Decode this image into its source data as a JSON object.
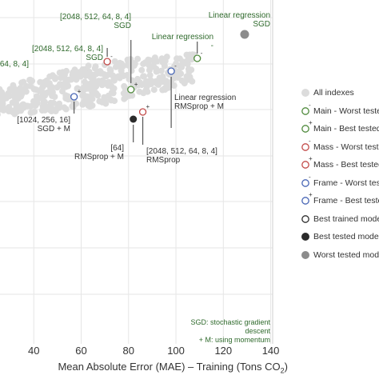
{
  "chart_data": {
    "type": "scatter",
    "xlabel": "Mean Absolute Error (MAE) – Training (Tons CO",
    "xlabel_sub": "2",
    "xlabel_tail": ")",
    "x_ticks": [
      "40",
      "60",
      "80",
      "100",
      "120",
      "140"
    ],
    "xlim": [
      20,
      140
    ],
    "colors": {
      "all": "#dcdcdc",
      "main": "#4f8a3c",
      "mass": "#c24a48",
      "frame": "#4765b5",
      "best_tested": "#2b2b2b",
      "worst_tested": "#8c8c8c",
      "annotation": "#2f6a2c",
      "leader": "#555555"
    },
    "series": [
      {
        "name": "All indexes",
        "marker": "filled-light"
      },
      {
        "name": "Main - Worst tested",
        "marker": "open",
        "color": "main",
        "sign": "-"
      },
      {
        "name": "Main - Best tested",
        "marker": "open",
        "color": "main",
        "sign": "+"
      },
      {
        "name": "Mass - Worst tested",
        "marker": "open",
        "color": "mass",
        "sign": "-"
      },
      {
        "name": "Mass - Best tested",
        "marker": "open",
        "color": "mass",
        "sign": "+"
      },
      {
        "name": "Frame - Worst tested",
        "marker": "open",
        "color": "frame",
        "sign": "-"
      },
      {
        "name": "Frame - Best tested",
        "marker": "open",
        "color": "frame",
        "sign": "+"
      },
      {
        "name": "Best trained model",
        "marker": "open",
        "color": "best_tested"
      },
      {
        "name": "Best tested model",
        "marker": "filled",
        "color": "best_tested"
      },
      {
        "name": "Worst tested model",
        "marker": "filled",
        "color": "worst_tested"
      }
    ],
    "highlighted_points": [
      {
        "series": "Main - Worst tested",
        "x": 109,
        "sign": "-"
      },
      {
        "series": "Main - Best tested",
        "x": 81,
        "sign": "+"
      },
      {
        "series": "Mass - Worst tested",
        "x": 71,
        "sign": "-"
      },
      {
        "series": "Mass - Best tested",
        "x": 86,
        "sign": "+"
      },
      {
        "series": "Frame - Worst tested",
        "x": 98,
        "sign": "-"
      },
      {
        "series": "Frame - Best tested",
        "x": 57,
        "sign": "+"
      },
      {
        "series": "Best tested model",
        "x": 82
      },
      {
        "series": "Worst tested model",
        "x": 129
      }
    ],
    "legend_labels": [
      "All indexes",
      "Main - Worst tested",
      "Main - Best tested",
      "Mass - Worst tested",
      "Mass - Best tested",
      "Frame - Worst tested",
      "Frame - Best tested",
      "Best trained model",
      "Best tested model",
      "Worst tested model"
    ],
    "annotations": [
      {
        "lines": [
          "Linear regression",
          "SGD"
        ]
      },
      {
        "lines": [
          "[2048, 512, 64, 8, 4]",
          "SGD"
        ]
      },
      {
        "lines": [
          "Linear regression",
          "-"
        ]
      },
      {
        "lines": [
          "[2048, 512, 64, 8, 4]",
          "SGD"
        ]
      },
      {
        "lines": [
          "64, 8, 4]"
        ]
      },
      {
        "lines": [
          "[1024, 256, 16]",
          "SGD + M"
        ]
      },
      {
        "lines": [
          "Linear regression",
          "RMSprop + M"
        ]
      },
      {
        "lines": [
          "[64]",
          "RMSprop + M"
        ]
      },
      {
        "lines": [
          "[2048, 512, 64, 8, 4]",
          "RMSprop"
        ]
      }
    ],
    "note": [
      "SGD: stochastic gradient descent",
      "+ M: using momentum"
    ]
  }
}
